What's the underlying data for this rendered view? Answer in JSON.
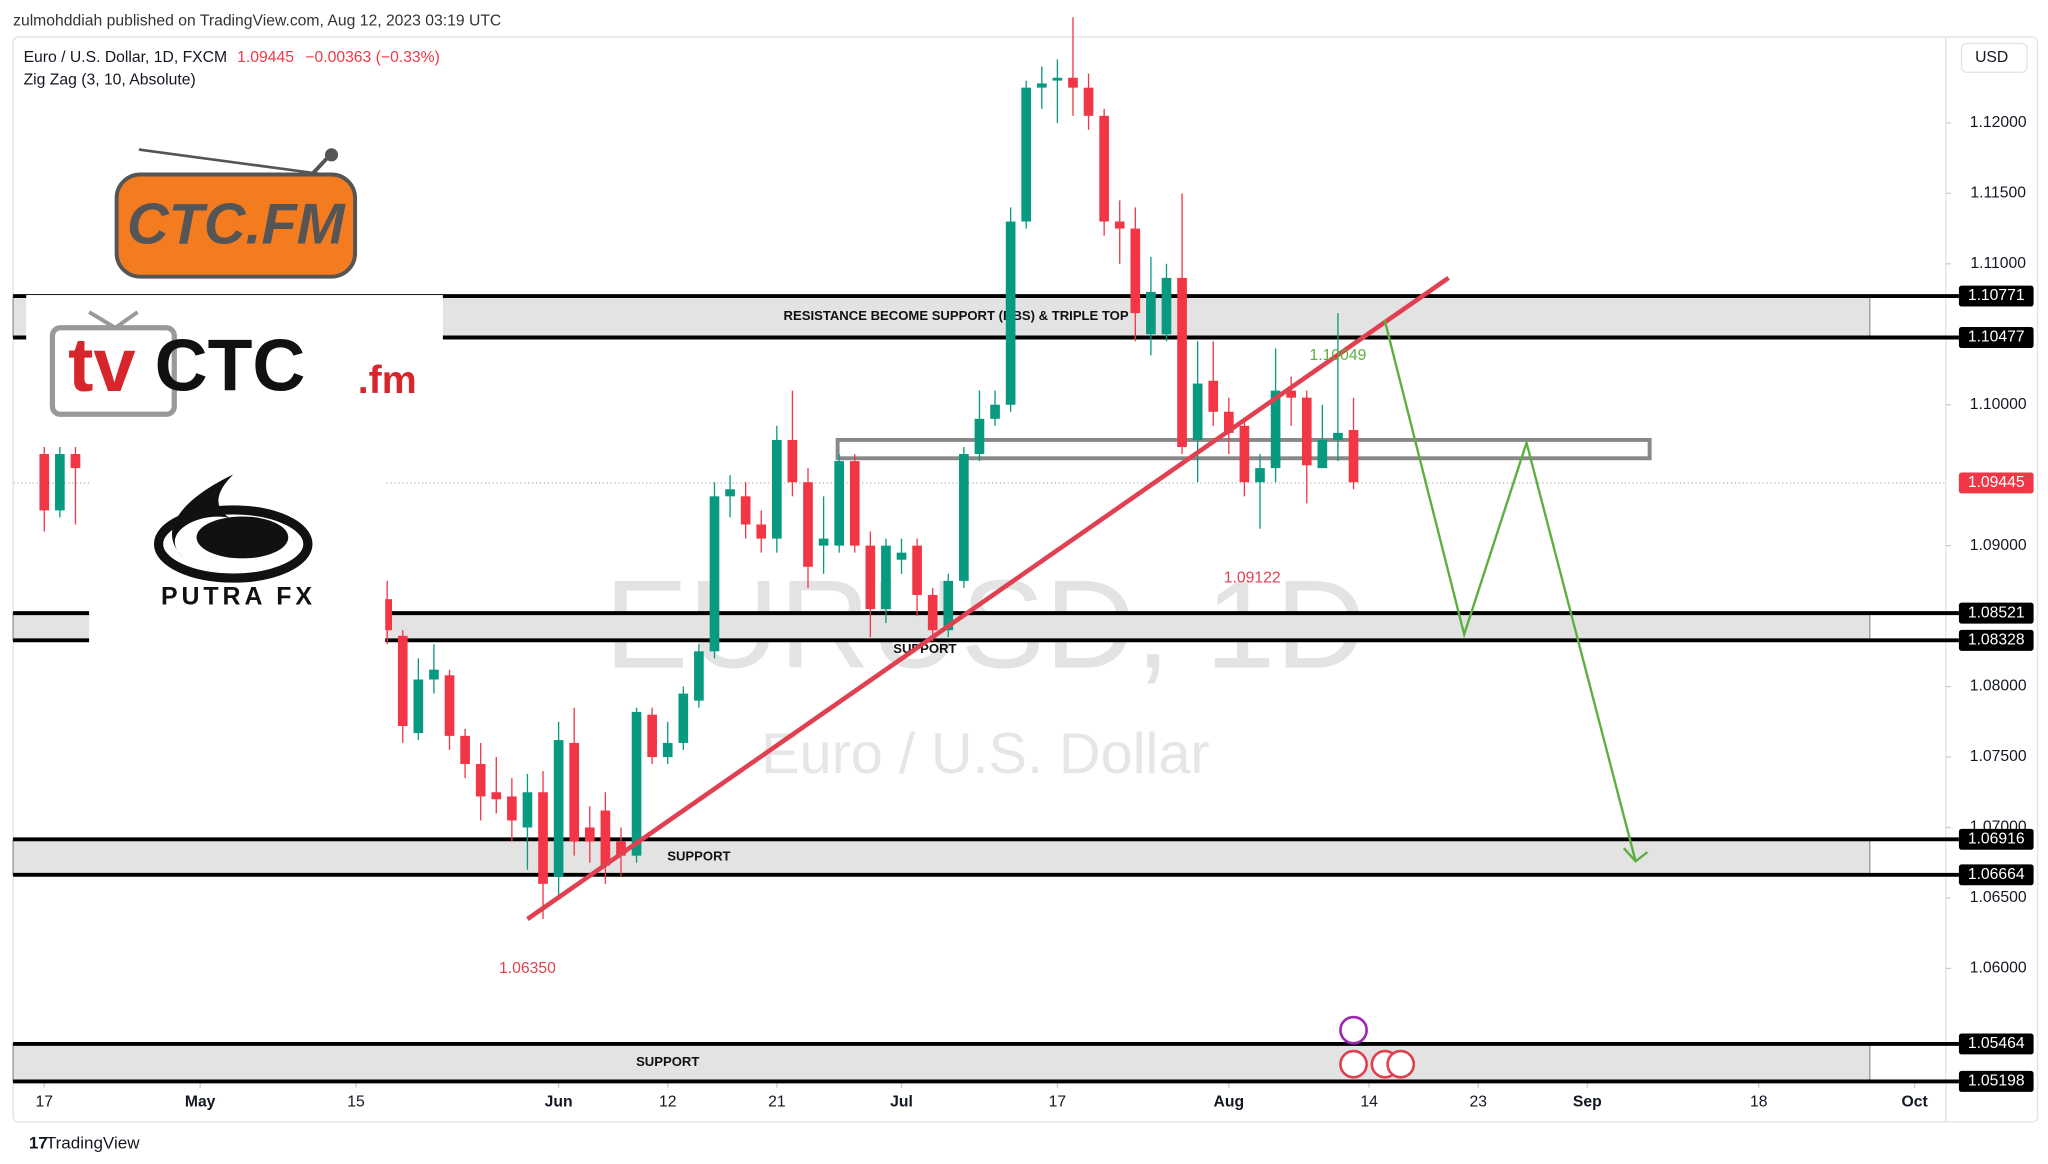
{
  "published": "zulmohddiah published on TradingView.com, Aug 12, 2023 03:19 UTC",
  "brand": "TradingView",
  "logos": {
    "ctc": "CTC.FM",
    "tv": "tv",
    "ctc2": "CTC",
    "fm": ".fm",
    "putra": "PUTRA FX"
  },
  "chart_data": {
    "type": "candlestick",
    "title": "Euro / U.S. Dollar, 1D, FXCM",
    "last_price": 1.09445,
    "change": "−0.00363 (−0.33%)",
    "indicator": "Zig Zag (3, 10, Absolute)",
    "currency": "USD",
    "watermark": "EURUSD, 1D",
    "watermark_subtitle": "Euro / U.S. Dollar",
    "up_color": "#089981",
    "down_color": "#f23645",
    "grid": false,
    "xlim": [
      -2,
      122
    ],
    "ylim": [
      1.0519,
      1.1261
    ],
    "xticks": [
      {
        "value": 0,
        "label": "17"
      },
      {
        "value": 10,
        "label": "May",
        "major": true
      },
      {
        "value": 20,
        "label": "15"
      },
      {
        "value": 33,
        "label": "Jun",
        "major": true
      },
      {
        "value": 40,
        "label": "12"
      },
      {
        "value": 47,
        "label": "21"
      },
      {
        "value": 55,
        "label": "Jul",
        "major": true
      },
      {
        "value": 65,
        "label": "17"
      },
      {
        "value": 76,
        "label": "Aug",
        "major": true
      },
      {
        "value": 85,
        "label": "14"
      },
      {
        "value": 92,
        "label": "23"
      },
      {
        "value": 99,
        "label": "Sep",
        "major": true
      },
      {
        "value": 110,
        "label": "18"
      },
      {
        "value": 120,
        "label": "Oct",
        "major": true
      }
    ],
    "yticks": [
      {
        "value": 1.12,
        "label": "1.12000"
      },
      {
        "value": 1.115,
        "label": "1.11500"
      },
      {
        "value": 1.11,
        "label": "1.11000"
      },
      {
        "value": 1.1,
        "label": "1.10000"
      },
      {
        "value": 1.09,
        "label": "1.09000"
      },
      {
        "value": 1.08,
        "label": "1.08000"
      },
      {
        "value": 1.075,
        "label": "1.07500"
      },
      {
        "value": 1.07,
        "label": "1.07000"
      },
      {
        "value": 1.065,
        "label": "1.06500"
      },
      {
        "value": 1.06,
        "label": "1.06000"
      }
    ],
    "x": [
      0,
      1,
      2,
      22,
      23,
      24,
      25,
      26,
      27,
      28,
      29,
      30,
      31,
      32,
      33,
      34,
      35,
      36,
      37,
      38,
      39,
      40,
      41,
      42,
      43,
      44,
      45,
      46,
      47,
      48,
      49,
      50,
      51,
      52,
      53,
      54,
      55,
      56,
      57,
      58,
      59,
      60,
      61,
      62,
      63,
      64,
      65,
      66,
      67,
      68,
      69,
      70,
      71,
      72,
      73,
      74,
      75,
      76,
      77,
      78,
      79,
      80,
      81,
      82,
      83,
      84
    ],
    "open": [
      1.0965,
      1.0925,
      1.0965,
      1.0862,
      1.0836,
      1.0767,
      1.0805,
      1.0808,
      1.0765,
      1.0745,
      1.0725,
      1.0722,
      1.07,
      1.0725,
      1.0665,
      1.076,
      1.07,
      1.0712,
      1.069,
      1.068,
      1.078,
      1.075,
      1.076,
      1.079,
      1.0825,
      1.0935,
      1.0935,
      1.0915,
      1.0905,
      1.0975,
      1.0945,
      1.09,
      1.09,
      1.096,
      1.09,
      1.0855,
      1.089,
      1.09,
      1.0865,
      1.084,
      1.0875,
      1.0965,
      1.099,
      1.1,
      1.113,
      1.1225,
      1.123,
      1.1232,
      1.1225,
      1.1205,
      1.113,
      1.1125,
      1.105,
      1.105,
      1.109,
      1.0975,
      1.1017,
      1.0995,
      1.0985,
      1.0945,
      1.0955,
      1.101,
      1.1005,
      1.0955,
      1.0975,
      1.0982
    ],
    "high": [
      1.097,
      1.097,
      1.097,
      1.0875,
      1.084,
      1.082,
      1.083,
      1.0812,
      1.077,
      1.076,
      1.075,
      1.0735,
      1.0738,
      1.074,
      1.0775,
      1.0785,
      1.0715,
      1.0725,
      1.07,
      1.0785,
      1.0785,
      1.0775,
      1.08,
      1.083,
      1.0945,
      1.095,
      1.0945,
      1.0925,
      1.0985,
      1.101,
      1.0955,
      1.0935,
      1.0965,
      1.0965,
      1.091,
      1.0905,
      1.0905,
      1.0905,
      1.087,
      1.088,
      1.097,
      1.101,
      1.101,
      1.114,
      1.123,
      1.124,
      1.1245,
      1.1275,
      1.1235,
      1.121,
      1.1145,
      1.114,
      1.1105,
      1.11,
      1.115,
      1.1045,
      1.1045,
      1.1005,
      1.099,
      1.0965,
      1.104,
      1.102,
      1.101,
      1.1,
      1.1065,
      1.1005
    ],
    "low": [
      1.091,
      1.092,
      1.0915,
      1.083,
      1.076,
      1.0762,
      1.0795,
      1.0755,
      1.0735,
      1.0705,
      1.071,
      1.069,
      1.067,
      1.0635,
      1.065,
      1.068,
      1.0675,
      1.066,
      1.0665,
      1.0675,
      1.0745,
      1.0745,
      1.0755,
      1.0785,
      1.082,
      1.092,
      1.0905,
      1.0895,
      1.0895,
      1.0935,
      1.087,
      1.088,
      1.0895,
      1.0895,
      1.0835,
      1.0845,
      1.088,
      1.085,
      1.0832,
      1.0835,
      1.087,
      1.096,
      1.0985,
      1.0995,
      1.1125,
      1.121,
      1.12,
      1.1205,
      1.1195,
      1.112,
      1.11,
      1.1045,
      1.1035,
      1.1045,
      1.0965,
      1.0945,
      1.0985,
      1.0965,
      1.0935,
      1.0912,
      1.0945,
      1.0985,
      1.093,
      1.0955,
      1.096,
      1.094
    ],
    "close": [
      1.0925,
      1.0965,
      1.0955,
      1.084,
      1.0772,
      1.0805,
      1.0812,
      1.0765,
      1.0745,
      1.0722,
      1.072,
      1.0705,
      1.0725,
      1.066,
      1.0762,
      1.069,
      1.069,
      1.0673,
      1.068,
      1.0782,
      1.075,
      1.076,
      1.0795,
      1.0825,
      1.0935,
      1.094,
      1.0915,
      1.0905,
      1.0975,
      1.0945,
      1.0885,
      1.0905,
      1.096,
      1.09,
      1.0855,
      1.09,
      1.0895,
      1.0865,
      1.084,
      1.0875,
      1.0965,
      1.099,
      1.1,
      1.113,
      1.1225,
      1.1228,
      1.1232,
      1.1225,
      1.1205,
      1.113,
      1.1125,
      1.1065,
      1.108,
      1.109,
      1.097,
      1.1015,
      1.0995,
      1.098,
      1.0945,
      1.0955,
      1.101,
      1.1005,
      1.0957,
      1.0975,
      1.098,
      1.0945
    ],
    "zones": [
      {
        "label": "RESISTANCE BECOME SUPPORT (RBS) & TRIPLE TOP",
        "top": 1.10771,
        "bottom": 1.10477,
        "label_x": 58.5,
        "label_side": "inside"
      },
      {
        "label": "SUPPORT",
        "top": 1.08521,
        "bottom": 1.08328,
        "label_x": 56.5,
        "label_side": "below"
      },
      {
        "label": "SUPPORT",
        "top": 1.06916,
        "bottom": 1.06664,
        "label_x": 42,
        "label_side": "inside"
      },
      {
        "label": "SUPPORT",
        "top": 1.05464,
        "bottom": 1.05198,
        "label_x": 40,
        "label_side": "inside"
      }
    ],
    "box": {
      "top": 1.0975,
      "bottom": 1.0962,
      "x_start": 50.9,
      "x_end": 103
    },
    "trendline": {
      "x": [
        31,
        90.1
      ],
      "values": [
        1.0635,
        1.109
      ],
      "color": "#e0404f"
    },
    "projection": {
      "x": [
        86,
        91.1,
        95.1,
        102.1
      ],
      "values": [
        1.106,
        1.0837,
        1.0973,
        1.0676
      ],
      "color": "#5cae3f"
    },
    "annotations": [
      {
        "x": 83,
        "value": 1.10049,
        "position": "above",
        "color": "#5cae3f"
      },
      {
        "x": 77.5,
        "value": 1.09122,
        "position": "below",
        "color": "#e0404f"
      },
      {
        "x": 31,
        "value": {
          "value": 1.0635,
          "label": "1.06350"
        },
        "position": "below",
        "color": "#e0404f"
      }
    ]
  }
}
